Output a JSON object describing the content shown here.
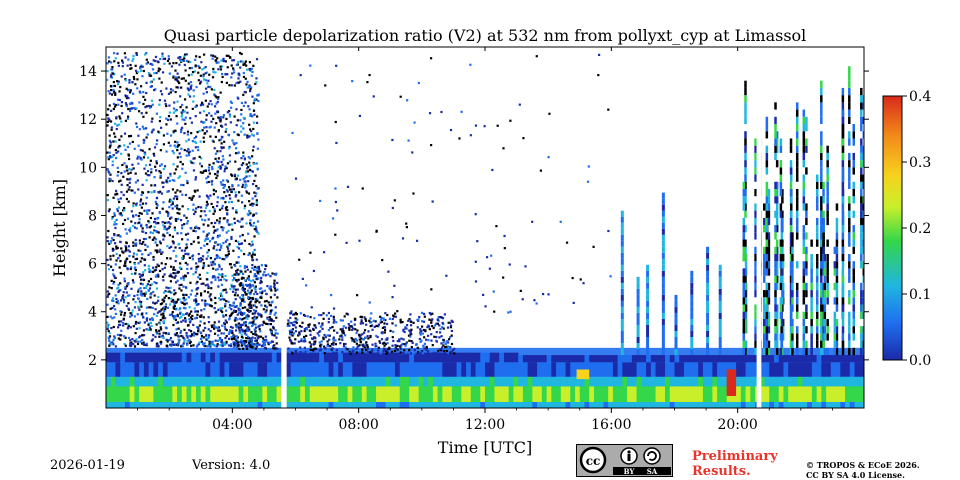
{
  "chart_data": {
    "type": "heatmap",
    "title": "Quasi particle depolarization ratio (V2) at 532 nm from pollyxt_cyp at Limassol",
    "xlabel": "Time [UTC]",
    "ylabel": "Height [km]",
    "xlim_hours": [
      0,
      24
    ],
    "ylim_km": [
      0,
      15
    ],
    "x_ticks": [
      {
        "hour": 4,
        "label": "04:00"
      },
      {
        "hour": 8,
        "label": "08:00"
      },
      {
        "hour": 12,
        "label": "12:00"
      },
      {
        "hour": 16,
        "label": "16:00"
      },
      {
        "hour": 20,
        "label": "20:00"
      }
    ],
    "y_ticks": [
      {
        "km": 2,
        "label": "2"
      },
      {
        "km": 4,
        "label": "4"
      },
      {
        "km": 6,
        "label": "6"
      },
      {
        "km": 8,
        "label": "8"
      },
      {
        "km": 10,
        "label": "10"
      },
      {
        "km": 12,
        "label": "12"
      },
      {
        "km": 14,
        "label": "14"
      }
    ],
    "colorbar": {
      "min": 0.0,
      "max": 0.4,
      "ticks": [
        {
          "value": 0.0,
          "label": "0.0"
        },
        {
          "value": 0.1,
          "label": "0.1"
        },
        {
          "value": 0.2,
          "label": "0.2"
        },
        {
          "value": 0.3,
          "label": "0.3"
        },
        {
          "value": 0.4,
          "label": "0.4"
        }
      ]
    },
    "data_gaps_hours": [
      [
        5.55,
        5.72
      ],
      [
        20.6,
        20.75
      ]
    ],
    "layers": [
      {
        "name": "high cloud / noisy signal (early)",
        "t_start": 0.0,
        "t_end": 4.8,
        "h_low": 3.0,
        "h_high": 14.8,
        "value": 0.05
      },
      {
        "name": "boundary layer",
        "t_start": 0.0,
        "t_end": 24.0,
        "h_low": 0.0,
        "h_high": 2.5,
        "value": 0.05
      },
      {
        "name": "near-ground aerosol",
        "t_start": 0.0,
        "t_end": 24.0,
        "h_low": 0.0,
        "h_high": 1.2,
        "value": 0.18
      },
      {
        "name": "evening convective plumes",
        "t_start": 15.8,
        "t_end": 19.5,
        "h_low": 2.0,
        "h_high": 9.0,
        "value": 0.05
      },
      {
        "name": "late high cloud",
        "t_start": 19.9,
        "t_end": 24.0,
        "h_low": 2.0,
        "h_high": 14.8,
        "value": 0.05
      },
      {
        "name": "depolarizing feature",
        "t_start": 19.6,
        "t_end": 20.0,
        "h_low": 0.4,
        "h_high": 1.8,
        "value": 0.38
      }
    ]
  },
  "footer": {
    "date": "2026-01-19",
    "version": "Version: 4.0",
    "preliminary": "Preliminary Results.",
    "copyright_line1": "© TROPOS & ECoE 2026.",
    "copyright_line2": "CC BY SA 4.0 License.",
    "cc_badge_label": "CC BY SA",
    "by_text": "BY",
    "sa_text": "SA"
  },
  "colors": {
    "cmap": [
      "#1b2aa8",
      "#1f6ef0",
      "#1fb6e0",
      "#34d64a",
      "#c9ef2a",
      "#f7d21c",
      "#f28a1a",
      "#d92b1b"
    ],
    "gap": "#ffffff",
    "prelim": "#e8342c",
    "badge": "#ababab"
  }
}
